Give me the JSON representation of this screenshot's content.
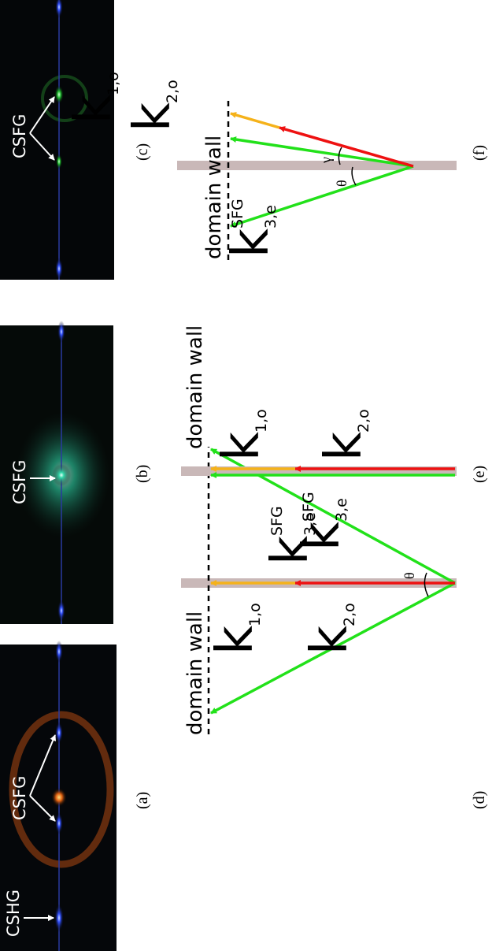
{
  "panels": [
    {
      "label": "(a)",
      "annotations": [
        "CSHG",
        "CSFG"
      ]
    },
    {
      "label": "(b)",
      "annotations": [
        "CSFG"
      ]
    },
    {
      "label": "(c)",
      "annotations": [
        "CSFG"
      ]
    }
  ],
  "diagrams": [
    {
      "label": "(d)",
      "wall_label": "domain wall",
      "angles": [
        "θ"
      ],
      "k1": {
        "symbol": "k",
        "subscript": "1,o"
      },
      "k2": {
        "symbol": "k",
        "subscript": "2,o"
      },
      "k3": {
        "symbol": "k",
        "superscript": "SFG",
        "subscript": "3,e"
      }
    },
    {
      "label": "(e)",
      "wall_label": "domain wall",
      "k1": {
        "symbol": "k",
        "subscript": "1,o"
      },
      "k2": {
        "symbol": "k",
        "subscript": "2,o"
      },
      "k3": {
        "symbol": "k",
        "superscript": "SFG",
        "subscript": "3,e"
      }
    },
    {
      "label": "(f)",
      "wall_label": "domain wall",
      "angles": [
        "θ",
        "γ"
      ],
      "k1": {
        "symbol": "k",
        "subscript": "1,o"
      },
      "k2": {
        "symbol": "k",
        "subscript": "2,o"
      },
      "k3": {
        "symbol": "k",
        "superscript": "SFG",
        "subscript": "3,e"
      }
    }
  ]
}
